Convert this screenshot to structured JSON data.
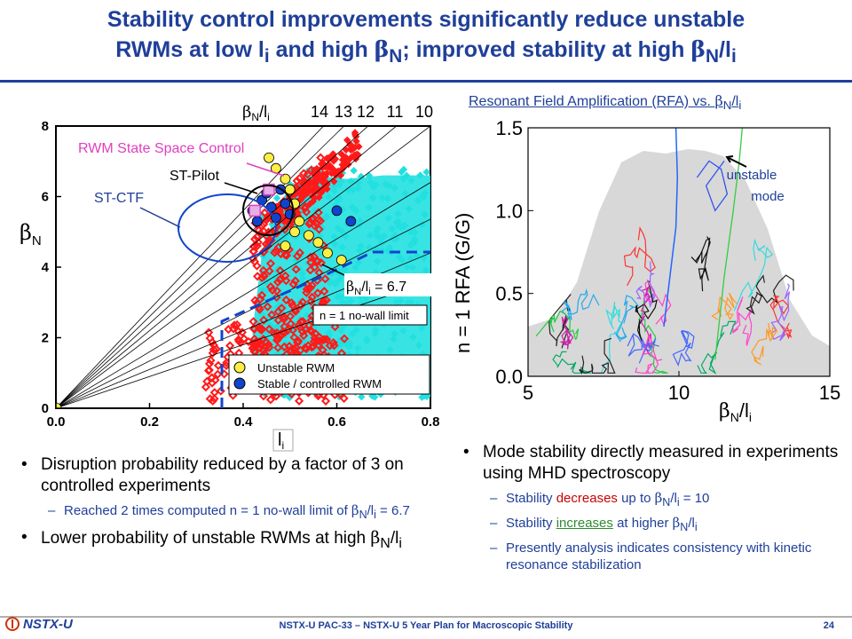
{
  "title": {
    "line1": "Stability control improvements significantly reduce unstable",
    "line2_a": "RWMs at low l",
    "line2_sub1": "i",
    "line2_b": " and high ",
    "beta": "β",
    "sub_N": "N",
    "line2_c": "; improved stability at high ",
    "line2_d": "/l",
    "line2_sub2": "i"
  },
  "left_chart": {
    "ylabel_beta": "β",
    "ylabel_sub": "N",
    "xlabel": "l",
    "xlabel_sub": "i",
    "x_ticks": [
      "0.0",
      "0.2",
      "0.4",
      "0.6",
      "0.8"
    ],
    "y_ticks": [
      "0",
      "2",
      "4",
      "6",
      "8"
    ],
    "ratio_label_beta": "β",
    "ratio_label_sub": "N",
    "ratio_label_rest": "/l",
    "ratio_label_sub2": "i",
    "ratio_values": [
      "14",
      "13",
      "12",
      "11",
      "10"
    ],
    "label_rwm_ssc": "RWM State Space Control",
    "label_st_pilot": "ST-Pilot",
    "label_st_ctf": "ST-CTF",
    "label_limit_beta": "β",
    "label_limit_sub": "N",
    "label_limit_rest": "/l",
    "label_limit_sub2": "i",
    "label_limit_value": " = 6.7",
    "label_nowall": "n = 1 no-wall limit",
    "legend_unstable": "Unstable RWM",
    "legend_stable": "Stable / controlled RWM",
    "colors": {
      "red": "#ff1a1a",
      "cyan": "#22e0e0",
      "yellow": "#ffee44",
      "blue": "#1144cc",
      "magenta": "#e040c0"
    }
  },
  "chart_data": [
    {
      "type": "scatter",
      "title": "",
      "xlabel": "li",
      "ylabel": "βN",
      "xlim": [
        0.0,
        0.8
      ],
      "ylim": [
        0,
        8
      ],
      "ratio_lines": [
        14,
        13,
        12,
        11,
        10
      ],
      "nowall_limit_ratio": 6.7,
      "series": [
        {
          "name": "Unstable RWM",
          "x": [
            0.455,
            0.47,
            0.49,
            0.5,
            0.51,
            0.52,
            0.54,
            0.56,
            0.58,
            0.49,
            0.51,
            0.61
          ],
          "y": [
            7.1,
            6.8,
            6.5,
            6.2,
            5.8,
            5.3,
            4.9,
            4.7,
            4.4,
            4.6,
            5.0,
            4.2
          ]
        },
        {
          "name": "Stable / controlled RWM",
          "x": [
            0.42,
            0.43,
            0.44,
            0.45,
            0.46,
            0.47,
            0.48,
            0.49,
            0.5,
            0.6,
            0.63,
            0.0
          ],
          "y": [
            5.6,
            5.3,
            5.9,
            6.1,
            5.7,
            5.4,
            6.2,
            5.8,
            5.5,
            5.6,
            5.3,
            0.0
          ]
        }
      ]
    },
    {
      "type": "line",
      "title": "Resonant Field Amplification (RFA) vs. βN/li",
      "xlabel": "βN/li",
      "ylabel": "n = 1 RFA (G/G)",
      "xlim": [
        5,
        15
      ],
      "ylim": [
        0.0,
        1.5
      ],
      "x_ticks": [
        "5",
        "10",
        "15"
      ],
      "y_ticks": [
        "0.0",
        "0.5",
        "1.0",
        "1.5"
      ]
    }
  ],
  "right_chart": {
    "title_text": "Resonant Field Amplification (RFA) vs. ",
    "title_beta": "β",
    "title_sub": "N",
    "title_rest": "/l",
    "title_sub2": "i",
    "ylabel": "n = 1 RFA (G/G)",
    "xlabel_beta": "β",
    "xlabel_sub": "N",
    "xlabel_rest": "/l",
    "xlabel_sub2": "i",
    "annotation_line1": "unstable",
    "annotation_line2": "mode",
    "x_ticks": [
      "5",
      "10",
      "15"
    ],
    "y_ticks": [
      "0.0",
      "0.5",
      "1.0",
      "1.5"
    ]
  },
  "bullets_left": {
    "b1": "Disruption probability reduced by a factor of 3 on controlled experiments",
    "b1_sub_a": "Reached 2 times computed n = 1 no-wall limit of ",
    "b1_sub_beta": "β",
    "b1_sub_N": "N",
    "b1_sub_rest": "/l",
    "b1_sub_i": "i",
    "b1_sub_val": " = 6.7",
    "b2_a": "Lower probability of unstable RWMs at high ",
    "b2_beta": "β",
    "b2_N": "N",
    "b2_rest": "/l",
    "b2_i": "i"
  },
  "bullets_right": {
    "b1": "Mode stability directly measured in experiments using MHD spectroscopy",
    "s1_a": "Stability ",
    "s1_red": "decreases",
    "s1_b": " up to ",
    "s1_beta": "β",
    "s1_N": "N",
    "s1_rest": "/l",
    "s1_i": "i",
    "s1_val": " = 10",
    "s2_a": "Stability ",
    "s2_green": "increases",
    "s2_b": " at higher ",
    "s2_beta": "β",
    "s2_N": "N",
    "s2_rest": "/l",
    "s2_i": "i",
    "s3": "Presently analysis indicates consistency with kinetic resonance stabilization"
  },
  "footer": {
    "logo": "NSTX-U",
    "text": "NSTX-U PAC-33 – NSTX-U 5 Year Plan for Macroscopic Stability",
    "page": "24"
  }
}
